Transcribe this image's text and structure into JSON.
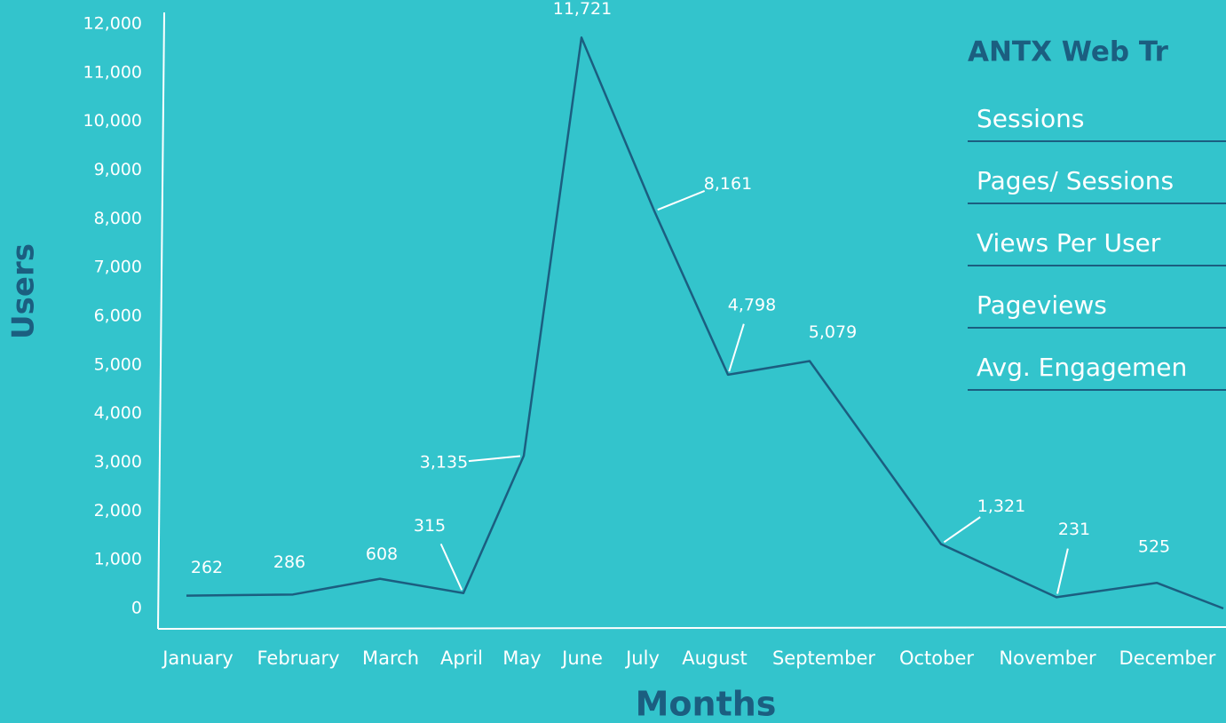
{
  "chart_data": {
    "type": "line",
    "y_label": "Users",
    "x_label": "Months",
    "categories": [
      "January",
      "February",
      "March",
      "April",
      "May",
      "June",
      "July",
      "August",
      "September",
      "October",
      "November",
      "December",
      null
    ],
    "values": [
      262,
      286,
      608,
      315,
      3135,
      11721,
      8161,
      4798,
      5079,
      1321,
      231,
      525,
      0
    ],
    "value_labels": [
      "262",
      "286",
      "608",
      "315",
      "3,135",
      "11,721",
      "8,161",
      "4,798",
      "5,079",
      "1,321",
      "231",
      "525",
      null
    ],
    "color": "#1b5e80",
    "ylim": [
      0,
      12000
    ],
    "yticks": [
      0,
      {
        "value": 1000,
        "label": "1,000"
      },
      {
        "value": 2000,
        "label": "2,000"
      },
      {
        "value": 3000,
        "label": "3,000"
      },
      {
        "value": 4000,
        "label": "4,000"
      },
      {
        "value": 5000,
        "label": "5,000"
      },
      {
        "value": 6000,
        "label": "6,000"
      },
      {
        "value": 7000,
        "label": "7,000"
      },
      {
        "value": 8000,
        "label": "8,000"
      },
      {
        "value": 9000,
        "label": "9,000"
      },
      {
        "value": 10000,
        "label": "10,000"
      },
      {
        "value": 11000,
        "label": "11,000"
      },
      {
        "value": 12000,
        "label": "12,000"
      }
    ],
    "grid": false
  },
  "panel": {
    "title": "ANTX Web Tr",
    "rows": [
      "Sessions",
      "Pages/ Sessions",
      "Views Per User",
      "Pageviews",
      "Avg. Engagemen"
    ]
  }
}
